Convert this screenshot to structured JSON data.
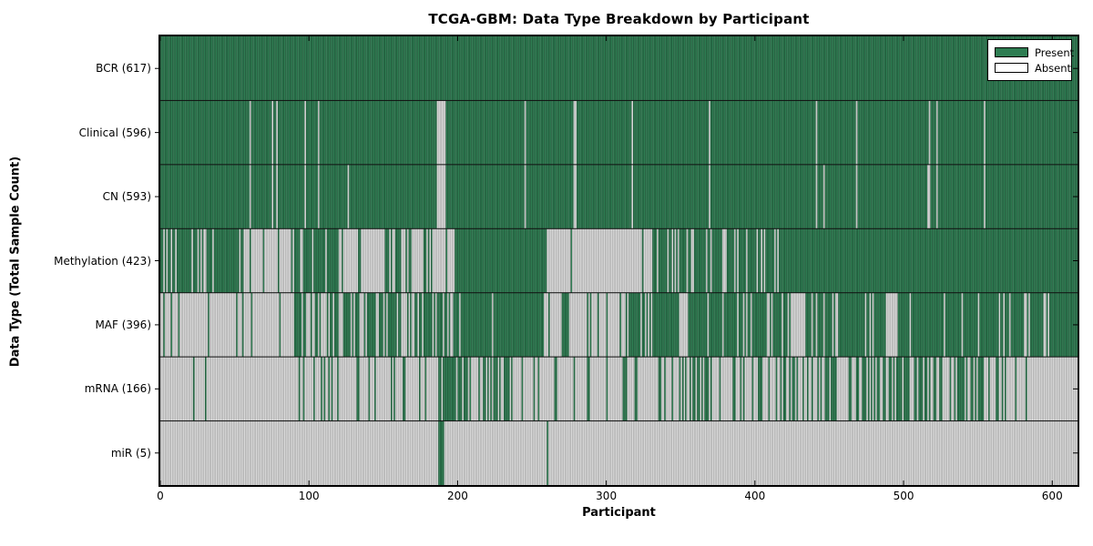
{
  "chart_data": {
    "type": "heatmap",
    "title": "TCGA-GBM: Data Type Breakdown by Participant",
    "xlabel": "Participant",
    "ylabel": "Data Type (Total Sample Count)",
    "x_ticks": [
      0,
      100,
      200,
      300,
      400,
      500,
      600
    ],
    "x_range": [
      0,
      617
    ],
    "participants_total": 617,
    "legend": {
      "present": "Present",
      "absent": "Absent"
    },
    "legend_position": "upper right",
    "colors": {
      "present": "#2e7d52",
      "present_edge": "rgba(10,28,18,0.50)",
      "absent": "#d9d9d9",
      "absent_edge": "rgba(60,60,60,0.38)",
      "separator": "#111111",
      "border": "#000000"
    },
    "rows": [
      {
        "label": "BCR",
        "count": 617,
        "display": "BCR (617)",
        "segments": [
          [
            0,
            617,
            1
          ]
        ]
      },
      {
        "label": "Clinical",
        "count": 596,
        "display": "Clinical (596)",
        "segments": [
          [
            0,
            60,
            1
          ],
          [
            60,
            61,
            0
          ],
          [
            61,
            75,
            1
          ],
          [
            75,
            76,
            0
          ],
          [
            76,
            78,
            1
          ],
          [
            78,
            79,
            0
          ],
          [
            79,
            97,
            1
          ],
          [
            97,
            98,
            0
          ],
          [
            98,
            106,
            1
          ],
          [
            106,
            107,
            0
          ],
          [
            107,
            186,
            1
          ],
          [
            186,
            192,
            0
          ],
          [
            192,
            245,
            1
          ],
          [
            245,
            246,
            0
          ],
          [
            246,
            278,
            1
          ],
          [
            278,
            280,
            0
          ],
          [
            280,
            317,
            1
          ],
          [
            317,
            318,
            0
          ],
          [
            318,
            369,
            1
          ],
          [
            369,
            370,
            0
          ],
          [
            370,
            441,
            1
          ],
          [
            441,
            442,
            0
          ],
          [
            442,
            468,
            1
          ],
          [
            468,
            469,
            0
          ],
          [
            469,
            517,
            1
          ],
          [
            517,
            518,
            0
          ],
          [
            518,
            522,
            1
          ],
          [
            522,
            523,
            0
          ],
          [
            523,
            554,
            1
          ],
          [
            554,
            555,
            0
          ],
          [
            555,
            617,
            1
          ]
        ]
      },
      {
        "label": "CN",
        "count": 593,
        "display": "CN (593)",
        "segments": [
          [
            0,
            60,
            1
          ],
          [
            60,
            61,
            0
          ],
          [
            61,
            75,
            1
          ],
          [
            75,
            76,
            0
          ],
          [
            76,
            78,
            1
          ],
          [
            78,
            79,
            0
          ],
          [
            79,
            97,
            1
          ],
          [
            97,
            98,
            0
          ],
          [
            98,
            106,
            1
          ],
          [
            106,
            107,
            0
          ],
          [
            107,
            126,
            1
          ],
          [
            126,
            127,
            0
          ],
          [
            127,
            186,
            1
          ],
          [
            186,
            192,
            0
          ],
          [
            192,
            245,
            1
          ],
          [
            245,
            246,
            0
          ],
          [
            246,
            278,
            1
          ],
          [
            278,
            280,
            0
          ],
          [
            280,
            317,
            1
          ],
          [
            317,
            318,
            0
          ],
          [
            318,
            369,
            1
          ],
          [
            369,
            370,
            0
          ],
          [
            370,
            441,
            1
          ],
          [
            441,
            442,
            0
          ],
          [
            442,
            446,
            1
          ],
          [
            446,
            447,
            0
          ],
          [
            447,
            468,
            1
          ],
          [
            468,
            469,
            0
          ],
          [
            469,
            516,
            1
          ],
          [
            516,
            518,
            0
          ],
          [
            518,
            522,
            1
          ],
          [
            522,
            523,
            0
          ],
          [
            523,
            554,
            1
          ],
          [
            554,
            555,
            0
          ],
          [
            555,
            617,
            1
          ]
        ]
      },
      {
        "label": "Methylation",
        "count": 423,
        "display": "Methylation (423)",
        "segments": [
          [
            0,
            56,
            0.72
          ],
          [
            56,
            89,
            0.15
          ],
          [
            89,
            119,
            0.8
          ],
          [
            119,
            141,
            0.55
          ],
          [
            141,
            147,
            0
          ],
          [
            147,
            167,
            0.5
          ],
          [
            167,
            198,
            0.3
          ],
          [
            198,
            260,
            1
          ],
          [
            260,
            331,
            0.02
          ],
          [
            331,
            415,
            0.78
          ],
          [
            415,
            416,
            0
          ],
          [
            416,
            617,
            1
          ]
        ]
      },
      {
        "label": "MAF",
        "count": 396,
        "display": "MAF (396)",
        "segments": [
          [
            0,
            16,
            0.1
          ],
          [
            16,
            89,
            0.06
          ],
          [
            89,
            131,
            0.55
          ],
          [
            131,
            171,
            0.65
          ],
          [
            171,
            206,
            0.8
          ],
          [
            206,
            258,
            0.92
          ],
          [
            258,
            270,
            0.08
          ],
          [
            270,
            275,
            1
          ],
          [
            275,
            310,
            0.15
          ],
          [
            310,
            333,
            0.7
          ],
          [
            333,
            349,
            0.95
          ],
          [
            349,
            355,
            0
          ],
          [
            355,
            425,
            0.85
          ],
          [
            425,
            437,
            0.25
          ],
          [
            437,
            488,
            0.85
          ],
          [
            488,
            496,
            0.1
          ],
          [
            496,
            617,
            0.9
          ]
        ]
      },
      {
        "label": "mRNA",
        "count": 166,
        "display": "mRNA (166)",
        "segments": [
          [
            0,
            22,
            0
          ],
          [
            22,
            23,
            1
          ],
          [
            23,
            30,
            0
          ],
          [
            30,
            31,
            1
          ],
          [
            31,
            90,
            0
          ],
          [
            90,
            140,
            0.2
          ],
          [
            140,
            185,
            0.25
          ],
          [
            185,
            207,
            0.8
          ],
          [
            207,
            235,
            0.5
          ],
          [
            235,
            262,
            0.3
          ],
          [
            262,
            300,
            0.08
          ],
          [
            300,
            345,
            0.2
          ],
          [
            345,
            370,
            0.45
          ],
          [
            370,
            400,
            0.3
          ],
          [
            400,
            470,
            0.42
          ],
          [
            470,
            520,
            0.55
          ],
          [
            520,
            545,
            0.45
          ],
          [
            545,
            570,
            0.5
          ],
          [
            570,
            595,
            0.1
          ],
          [
            595,
            617,
            0.1
          ]
        ]
      },
      {
        "label": "miR",
        "count": 5,
        "display": "miR (5)",
        "segments": [
          [
            0,
            187,
            0
          ],
          [
            187,
            191,
            1
          ],
          [
            191,
            260,
            0
          ],
          [
            260,
            261,
            1
          ],
          [
            261,
            617,
            0
          ]
        ]
      }
    ]
  }
}
